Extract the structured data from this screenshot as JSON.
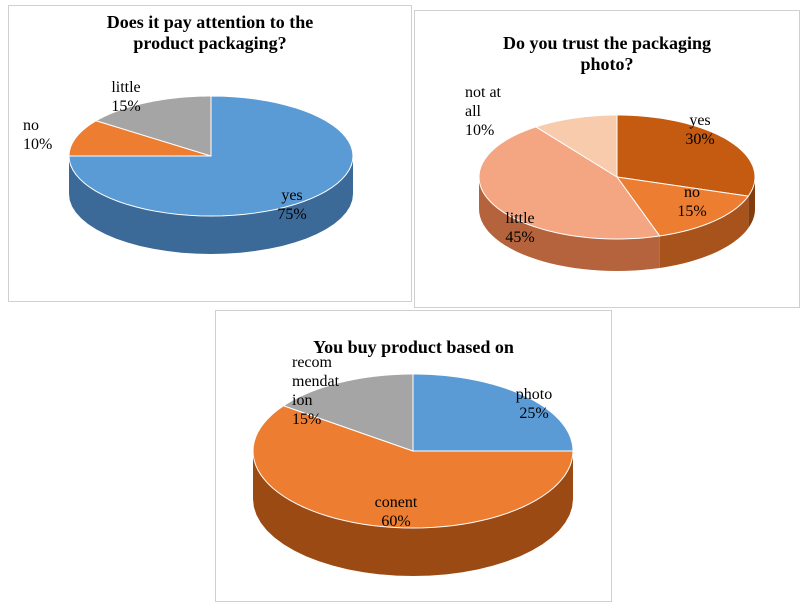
{
  "chart_data": [
    {
      "type": "pie",
      "title": "Does it pay attention to the product packaging?",
      "title_lines": [
        "Does it pay attention to the",
        "product packaging?"
      ],
      "slices": [
        {
          "label": "yes",
          "value": 75,
          "value_label": "75%",
          "color": "#5b9bd5",
          "side_color": "#3b6a99"
        },
        {
          "label": "no",
          "value": 10,
          "value_label": "10%",
          "color": "#ed7d31",
          "side_color": "#a8531c"
        },
        {
          "label": "little",
          "value": 15,
          "value_label": "15%",
          "color": "#a5a5a5",
          "side_color": "#6f6f6f"
        }
      ]
    },
    {
      "type": "pie",
      "title": "Do you trust the packaging photo?",
      "title_lines": [
        "Do you trust the packaging",
        "photo?"
      ],
      "slices": [
        {
          "label": "yes",
          "value": 30,
          "value_label": "30%",
          "color": "#c55a11",
          "side_color": "#843c0c"
        },
        {
          "label": "no",
          "value": 15,
          "value_label": "15%",
          "color": "#ed7d31",
          "side_color": "#a8531c"
        },
        {
          "label": "little",
          "value": 45,
          "value_label": "45%",
          "color": "#f4a582",
          "side_color": "#b5633c"
        },
        {
          "label": "not at all",
          "value": 10,
          "value_label": "10%",
          "color": "#f8cbad",
          "side_color": "#c99373"
        }
      ]
    },
    {
      "type": "pie",
      "title": "You buy product based on",
      "title_lines": [
        "You buy product based on"
      ],
      "slices": [
        {
          "label": "photo",
          "value": 25,
          "value_label": "25%",
          "color": "#5b9bd5",
          "side_color": "#3b6a99"
        },
        {
          "label": "conent",
          "value": 60,
          "value_label": "60%",
          "color": "#ed7d31",
          "side_color": "#9c4a14"
        },
        {
          "label": "recommendation",
          "value": 15,
          "value_label": "15%",
          "color": "#a5a5a5",
          "side_color": "#6f6f6f"
        }
      ]
    }
  ]
}
